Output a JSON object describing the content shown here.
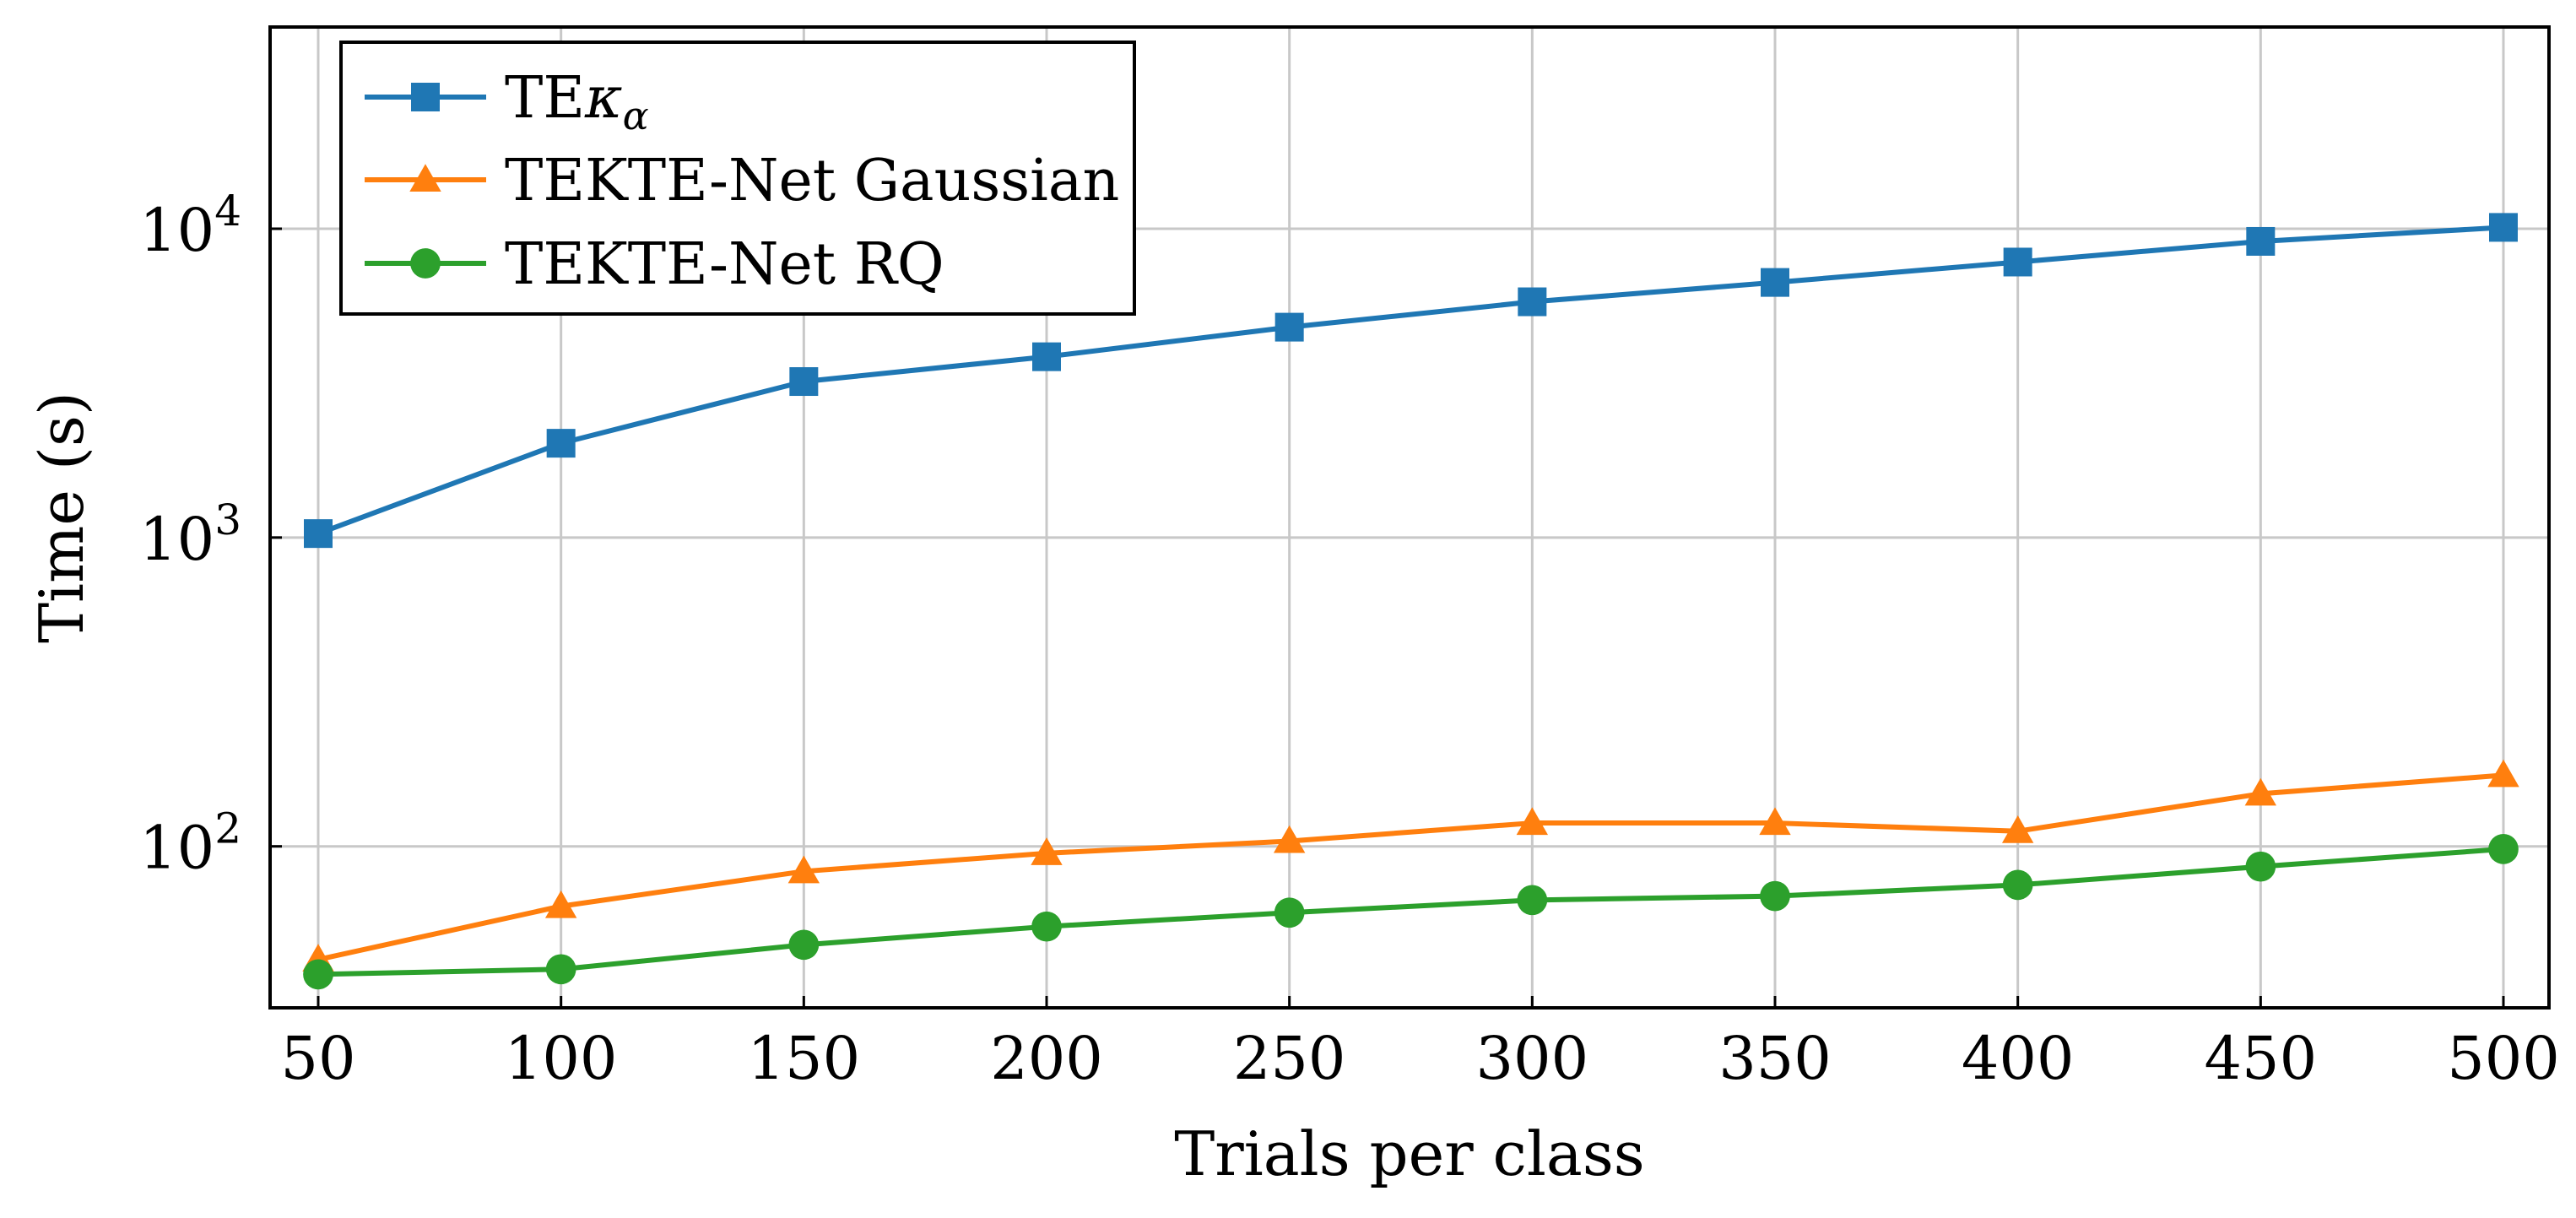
{
  "chart_data": {
    "type": "line",
    "title": "",
    "xlabel": "Trials per class",
    "ylabel": "Time (s)",
    "yscale": "log",
    "ylim": [
      30,
      45000
    ],
    "x": [
      50,
      100,
      150,
      200,
      250,
      300,
      350,
      400,
      450,
      500
    ],
    "xticks": [
      "50",
      "100",
      "150",
      "200",
      "250",
      "300",
      "350",
      "400",
      "450",
      "500"
    ],
    "yticks": [
      {
        "value": 100,
        "base": "10",
        "exp": "2"
      },
      {
        "value": 1000,
        "base": "10",
        "exp": "3"
      },
      {
        "value": 10000,
        "base": "10",
        "exp": "4"
      }
    ],
    "grid": true,
    "legend_position": "top-left",
    "series": [
      {
        "name": "TEκα",
        "name_main": "TE",
        "name_sym": "κ",
        "name_sub": "α",
        "color": "#1f77b4",
        "marker": "square",
        "values": [
          1030,
          2020,
          3200,
          3850,
          4800,
          5800,
          6700,
          7800,
          9100,
          10100
        ]
      },
      {
        "name": "TEKTE-Net Gaussian",
        "color": "#ff7f0e",
        "marker": "triangle",
        "values": [
          43,
          64,
          83,
          95,
          104,
          119,
          119,
          112,
          148,
          170
        ]
      },
      {
        "name": "TEKTE-Net RQ",
        "color": "#2ca02c",
        "marker": "circle",
        "values": [
          38.5,
          40,
          48,
          55,
          61,
          67,
          69,
          75,
          86,
          98
        ]
      }
    ]
  }
}
